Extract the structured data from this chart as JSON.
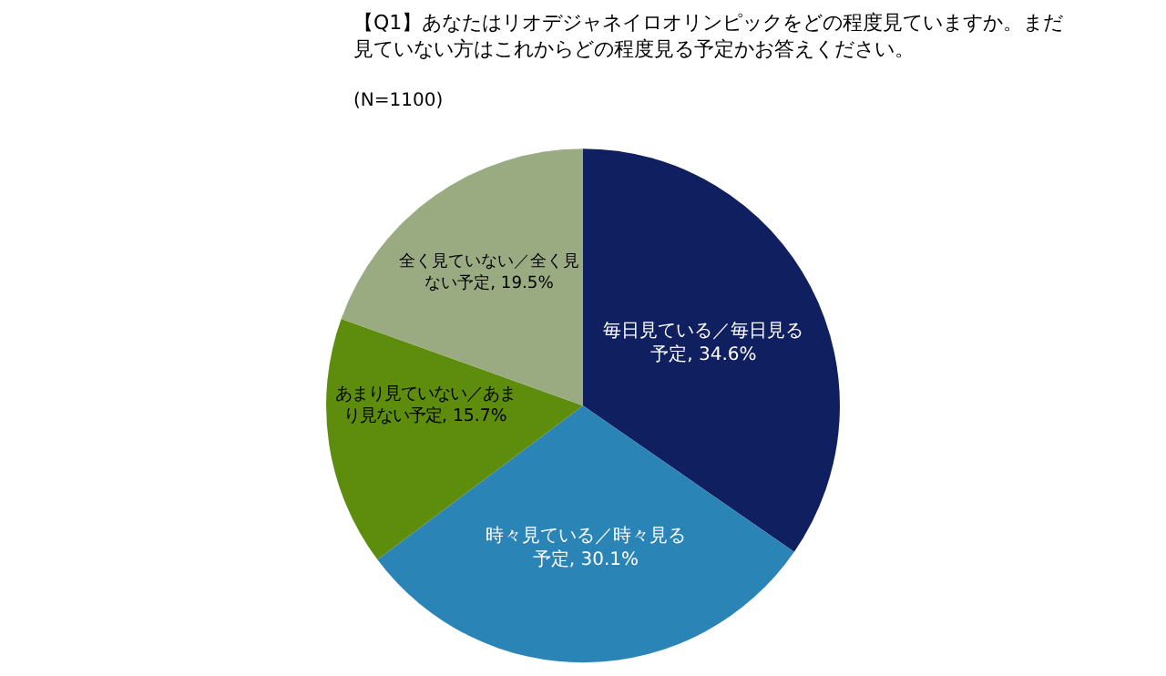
{
  "chart_data": {
    "type": "pie",
    "title": "【Q1】あなたはリオデジャネイロオリンピックをどの程度見ていますか。まだ見ていない方はこれからどの程度見る予定かお答えください。",
    "subtitle": "(N=1100)",
    "categories": [
      "毎日見ている／毎日見る予定",
      "時々見ている／時々見る予定",
      "あまり見ていない／あまり見ない予定",
      "全く見ていない／全く見ない予定"
    ],
    "values": [
      34.6,
      30.1,
      15.7,
      19.5
    ],
    "value_labels": [
      "34.6%",
      "30.1%",
      "15.7%",
      "19.5%"
    ],
    "colors": [
      "#0f1f60",
      "#2b84b6",
      "#5e8c0c",
      "#9aab82"
    ],
    "legend": false
  }
}
